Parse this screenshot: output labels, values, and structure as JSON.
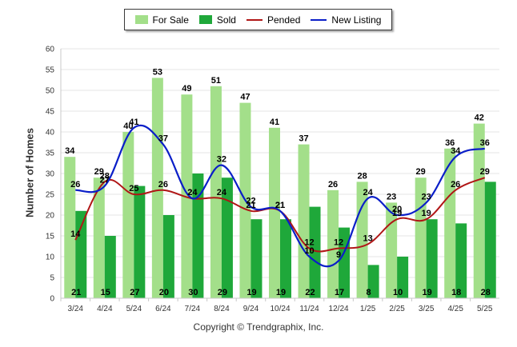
{
  "legend": {
    "for_sale": "For Sale",
    "sold": "Sold",
    "pended": "Pended",
    "new_listing": "New Listing"
  },
  "colors": {
    "for_sale": "#a3df8a",
    "sold": "#1fa83a",
    "pended": "#b01616",
    "new_listing": "#0a1ec8",
    "grid": "#e6e6e6"
  },
  "ylabel": "Number of Homes",
  "footer": "Copyright © Trendgraphix, Inc.",
  "chart_data": {
    "type": "bar",
    "categories": [
      "3/24",
      "4/24",
      "5/24",
      "6/24",
      "7/24",
      "8/24",
      "9/24",
      "10/24",
      "11/24",
      "12/24",
      "1/25",
      "2/25",
      "3/25",
      "4/25",
      "5/25"
    ],
    "ylim": [
      0,
      60
    ],
    "yticks": [
      0,
      5,
      10,
      15,
      20,
      25,
      30,
      35,
      40,
      45,
      50,
      55,
      60
    ],
    "grid": true,
    "legend_position": "top",
    "series": [
      {
        "name": "For Sale",
        "kind": "bar",
        "values": [
          34,
          29,
          40,
          53,
          49,
          51,
          47,
          41,
          37,
          26,
          28,
          23,
          29,
          36,
          42
        ]
      },
      {
        "name": "Sold",
        "kind": "bar",
        "values": [
          21,
          15,
          27,
          20,
          30,
          29,
          19,
          19,
          22,
          17,
          8,
          10,
          19,
          18,
          28
        ]
      },
      {
        "name": "Pended",
        "kind": "line",
        "values": [
          14,
          28,
          25,
          26,
          24,
          24,
          21,
          21,
          12,
          12,
          13,
          19,
          19,
          26,
          29
        ]
      },
      {
        "name": "New Listing",
        "kind": "line",
        "values": [
          26,
          27,
          41,
          37,
          24,
          32,
          22,
          21,
          10,
          9,
          24,
          20,
          23,
          34,
          36
        ]
      }
    ]
  }
}
